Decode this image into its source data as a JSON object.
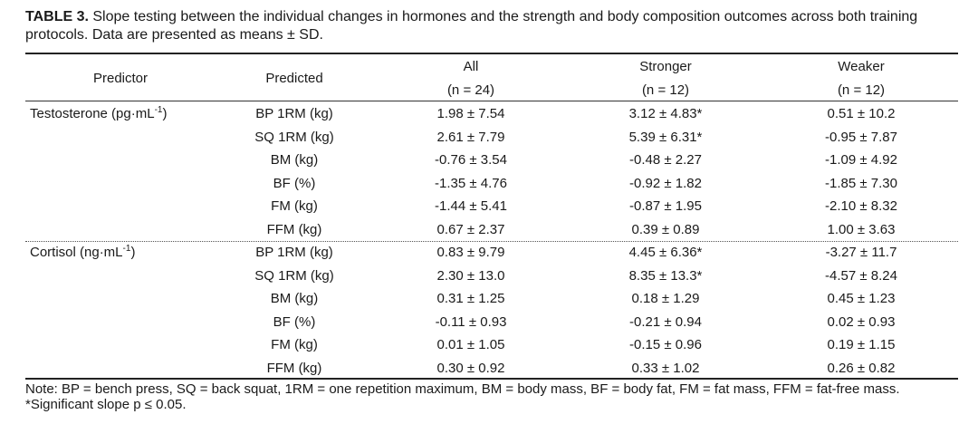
{
  "caption": {
    "label": "TABLE 3.",
    "line1": " Slope testing between the individual changes in hormones and the strength and body composition outcomes across both training",
    "line2": "protocols. Data are presented as means ± SD."
  },
  "headers": {
    "predictor": "Predictor",
    "predicted": "Predicted",
    "all": "All",
    "all_n": "(n = 24)",
    "stronger": "Stronger",
    "stronger_n": "(n = 12)",
    "weaker": "Weaker",
    "weaker_n": "(n = 12)"
  },
  "groups": [
    {
      "predictor": "Testosterone (pg·mL",
      "predictor_exp": "-1",
      "predictor_close": ")",
      "rows": [
        {
          "predicted": "BP 1RM (kg)",
          "all": "1.98 ± 7.54",
          "stronger": "3.12 ± 4.83*",
          "weaker": "0.51 ± 10.2"
        },
        {
          "predicted": "SQ 1RM (kg)",
          "all": "2.61 ± 7.79",
          "stronger": "5.39 ± 6.31*",
          "weaker": "-0.95 ± 7.87"
        },
        {
          "predicted": "BM (kg)",
          "all": "-0.76 ± 3.54",
          "stronger": "-0.48 ± 2.27",
          "weaker": "-1.09 ± 4.92"
        },
        {
          "predicted": "BF (%)",
          "all": "-1.35 ± 4.76",
          "stronger": "-0.92 ± 1.82",
          "weaker": "-1.85 ± 7.30"
        },
        {
          "predicted": "FM (kg)",
          "all": "-1.44 ± 5.41",
          "stronger": "-0.87 ± 1.95",
          "weaker": "-2.10 ± 8.32"
        },
        {
          "predicted": "FFM (kg)",
          "all": "0.67 ± 2.37",
          "stronger": "0.39 ± 0.89",
          "weaker": "1.00 ± 3.63"
        }
      ]
    },
    {
      "predictor": "Cortisol (ng·mL",
      "predictor_exp": "-1",
      "predictor_close": ")",
      "rows": [
        {
          "predicted": "BP 1RM (kg)",
          "all": "0.83 ± 9.79",
          "stronger": "4.45 ± 6.36*",
          "weaker": "-3.27 ± 11.7"
        },
        {
          "predicted": "SQ 1RM (kg)",
          "all": "2.30 ± 13.0",
          "stronger": "8.35 ± 13.3*",
          "weaker": "-4.57 ± 8.24"
        },
        {
          "predicted": "BM (kg)",
          "all": "0.31 ± 1.25",
          "stronger": "0.18 ± 1.29",
          "weaker": "0.45 ± 1.23"
        },
        {
          "predicted": "BF (%)",
          "all": "-0.11 ± 0.93",
          "stronger": "-0.21 ± 0.94",
          "weaker": "0.02 ± 0.93"
        },
        {
          "predicted": "FM (kg)",
          "all": "0.01 ± 1.05",
          "stronger": "-0.15 ± 0.96",
          "weaker": "0.19 ± 1.15"
        },
        {
          "predicted": "FFM (kg)",
          "all": "0.30 ± 0.92",
          "stronger": "0.33 ± 1.02",
          "weaker": "0.26 ± 0.82"
        }
      ]
    }
  ],
  "note": {
    "line1": "Note: BP = bench press, SQ = back squat, 1RM = one repetition maximum, BM = body mass, BF = body fat, FM = fat mass, FFM = fat-free mass.",
    "line2": "*Significant slope p ≤ 0.05."
  }
}
